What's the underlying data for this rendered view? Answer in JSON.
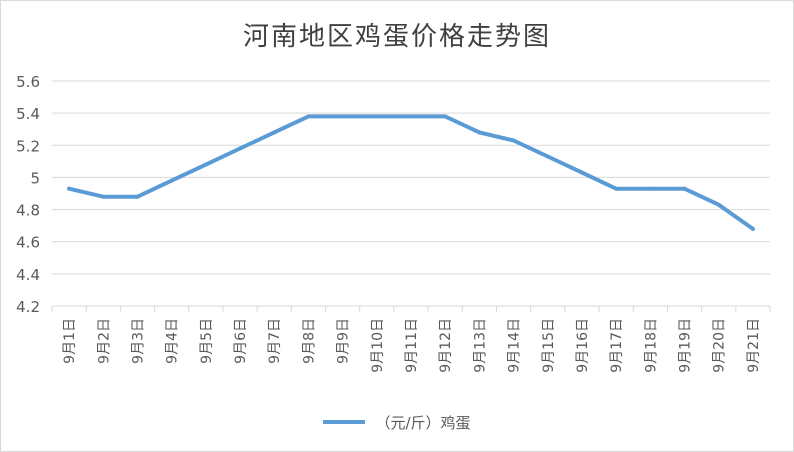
{
  "chart_data": {
    "type": "line",
    "title": "河南地区鸡蛋价格走势图",
    "categories": [
      "9月1日",
      "9月2日",
      "9月3日",
      "9月4日",
      "9月5日",
      "9月6日",
      "9月7日",
      "9月8日",
      "9月9日",
      "9月10日",
      "9月11日",
      "9月12日",
      "9月13日",
      "9月14日",
      "9月15日",
      "9月16日",
      "9月17日",
      "9月18日",
      "9月19日",
      "9月20日",
      "9月21日"
    ],
    "series": [
      {
        "name": "（元/斤）鸡蛋",
        "values": [
          4.93,
          4.88,
          4.88,
          4.98,
          5.08,
          5.18,
          5.28,
          5.38,
          5.38,
          5.38,
          5.38,
          5.38,
          5.28,
          5.23,
          5.13,
          5.03,
          4.93,
          4.93,
          4.93,
          4.83,
          4.68
        ]
      }
    ],
    "ylim": [
      4.2,
      5.6
    ],
    "yticks": [
      "4.2",
      "4.4",
      "4.6",
      "4.8",
      "5",
      "5.2",
      "5.4",
      "5.6"
    ],
    "xlabel": "",
    "ylabel": "",
    "grid": true,
    "legend": "bottom",
    "colors": {
      "line": "#5b9bd5",
      "grid": "#d9d9d9",
      "text": "#595959"
    }
  }
}
